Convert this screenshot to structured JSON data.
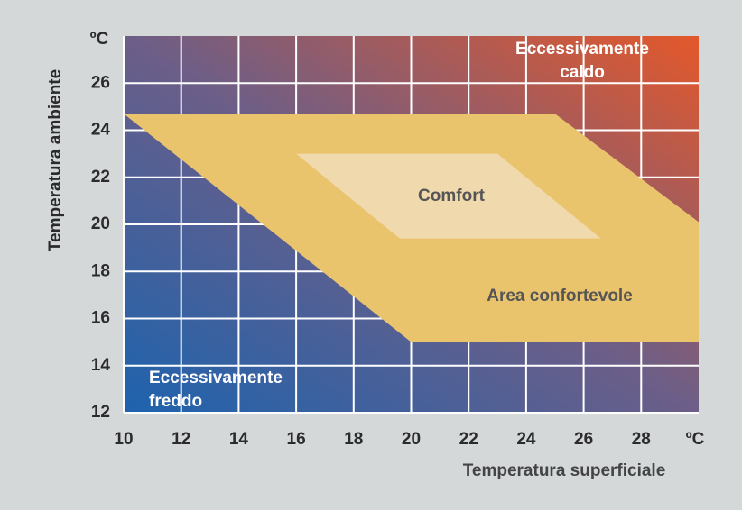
{
  "chart_data": {
    "type": "region",
    "xlabel": "Temperatura superficiale",
    "ylabel": "Temperatura ambiente",
    "x_unit": "ºC",
    "y_unit": "ºC",
    "xlim": [
      10,
      30
    ],
    "ylim": [
      12,
      28
    ],
    "xticks": [
      10,
      12,
      14,
      16,
      18,
      20,
      22,
      24,
      26,
      28
    ],
    "yticks": [
      12,
      14,
      16,
      18,
      20,
      22,
      24,
      26
    ],
    "grid": true,
    "background_colors": [
      "#1d63ae",
      "#6c5e88",
      "#e4582a"
    ],
    "regions": [
      {
        "name": "Area confortevole",
        "color": "#e9c46c",
        "x": [
          10,
          25,
          30,
          30,
          20
        ],
        "y": [
          24.7,
          24.7,
          20.1,
          15,
          15
        ]
      },
      {
        "name": "Comfort",
        "color": "#f1dfbd",
        "x": [
          16,
          23,
          26.6,
          19.6
        ],
        "y": [
          23,
          23,
          19.4,
          19.4
        ]
      }
    ],
    "annotations": [
      {
        "lines": [
          "Eccessivamente",
          "caldo"
        ]
      },
      {
        "lines": [
          "Eccessivamente",
          "freddo"
        ]
      }
    ]
  }
}
